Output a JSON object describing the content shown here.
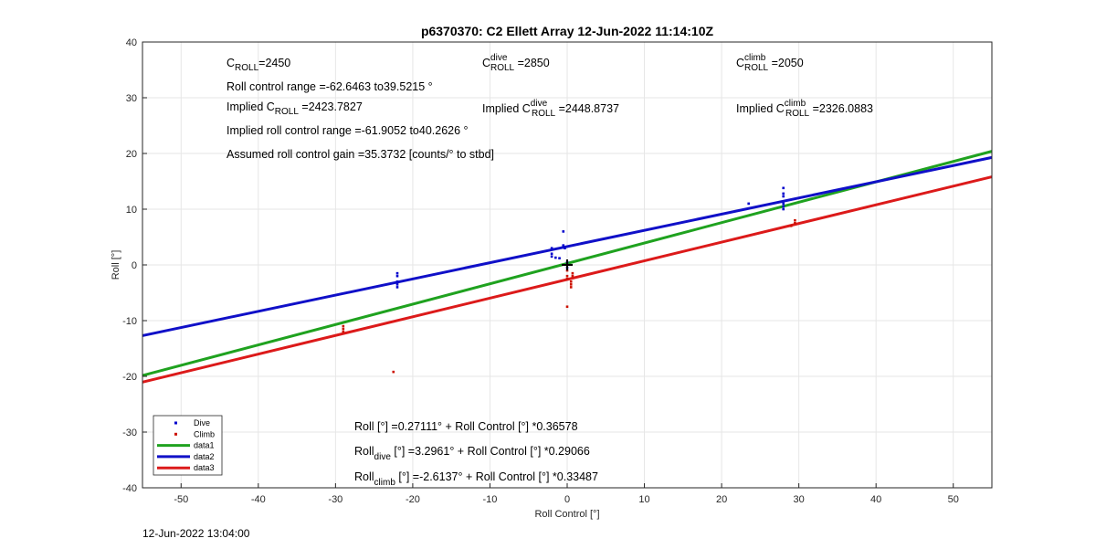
{
  "chart_data": {
    "type": "scatter",
    "title": "p6370370: C2 Ellett Array 12-Jun-2022 11:14:10Z",
    "xlabel": "Roll Control [°]",
    "ylabel": "Roll [°]",
    "xlim": [
      -55,
      55
    ],
    "ylim": [
      -40,
      40
    ],
    "xticks": [
      -50,
      -40,
      -30,
      -20,
      -10,
      0,
      10,
      20,
      30,
      40,
      50
    ],
    "yticks": [
      -40,
      -30,
      -20,
      -10,
      0,
      10,
      20,
      30,
      40
    ],
    "grid": true,
    "legend_position": "bottom-left",
    "series": [
      {
        "name": "Dive",
        "kind": "points",
        "color": "#0000cc",
        "points": [
          [
            -22,
            -1.5
          ],
          [
            -22,
            -2
          ],
          [
            -22,
            -3
          ],
          [
            -22,
            -3.5
          ],
          [
            -22,
            -4
          ],
          [
            -2,
            3
          ],
          [
            -2,
            2
          ],
          [
            -2,
            1.5
          ],
          [
            -1.5,
            1.3
          ],
          [
            -1,
            1.2
          ],
          [
            -0.5,
            6
          ],
          [
            -0.5,
            3.5
          ],
          [
            -0.3,
            3
          ],
          [
            0,
            0.5
          ],
          [
            0,
            -0.5
          ],
          [
            23.5,
            11
          ],
          [
            28,
            13.8
          ],
          [
            28,
            12.8
          ],
          [
            28,
            12.3
          ],
          [
            28,
            11
          ],
          [
            28,
            10.5
          ],
          [
            28,
            10
          ]
        ]
      },
      {
        "name": "Climb",
        "kind": "points",
        "color": "#cc1100",
        "points": [
          [
            -29,
            -11
          ],
          [
            -29,
            -11.5
          ],
          [
            -29,
            -12
          ],
          [
            -22.5,
            -19.2
          ],
          [
            0,
            -7.5
          ],
          [
            0,
            -1
          ],
          [
            0,
            -2
          ],
          [
            0,
            -2.5
          ],
          [
            0.5,
            -3
          ],
          [
            0.5,
            -3.5
          ],
          [
            0.5,
            -4
          ],
          [
            0.7,
            -2
          ],
          [
            0.7,
            -1.5
          ],
          [
            29.5,
            8
          ],
          [
            29.5,
            7.5
          ],
          [
            29,
            7
          ]
        ]
      },
      {
        "name": "data1",
        "kind": "line",
        "color": "#1fa21f",
        "intercept": 0.27111,
        "slope": 0.36578
      },
      {
        "name": "data2",
        "kind": "line",
        "color": "#1010c8",
        "intercept": 3.2961,
        "slope": 0.29066
      },
      {
        "name": "data3",
        "kind": "line",
        "color": "#dc1a1a",
        "intercept": -2.6137,
        "slope": 0.33487
      }
    ],
    "markers": [
      {
        "symbol": "+",
        "x": 0,
        "y": 0,
        "color": "#000000"
      }
    ],
    "annotations": {
      "c_roll": {
        "base": "C",
        "sub": "ROLL",
        "value": "=2450"
      },
      "c_dive": {
        "base": "C",
        "sup": "dive",
        "sub": "ROLL",
        "value": " =2850"
      },
      "c_climb": {
        "base": "C",
        "sup": "climb",
        "sub": "ROLL",
        "value": " =2050"
      },
      "roll_range": "Roll control range =-62.6463 to39.5215 °",
      "implied_c_roll": {
        "base": "Implied C",
        "sub": "ROLL",
        "value": " =2423.7827"
      },
      "implied_c_dive": {
        "base": "Implied C",
        "sup": "dive",
        "sub": "ROLL",
        "value": " =2448.8737"
      },
      "implied_c_climb": {
        "base": "Implied C",
        "sup": "climb",
        "sub": "ROLL",
        "value": " =2326.0883"
      },
      "implied_range": "Implied roll control range =-61.9052 to40.2626 °",
      "gain": "Assumed roll control gain =35.3732 [counts/° to stbd]",
      "eq_all": "Roll [°] =0.27111° + Roll Control [°] *0.36578",
      "eq_dive": {
        "base": "Roll",
        "sub": "dive",
        "rest": " [°] =3.2961° + Roll Control [°] *0.29066"
      },
      "eq_climb": {
        "base": "Roll",
        "sub": "climb",
        "rest": " [°] =-2.6137° + Roll Control [°] *0.33487"
      }
    }
  },
  "timestamp": "12-Jun-2022 13:04:00"
}
